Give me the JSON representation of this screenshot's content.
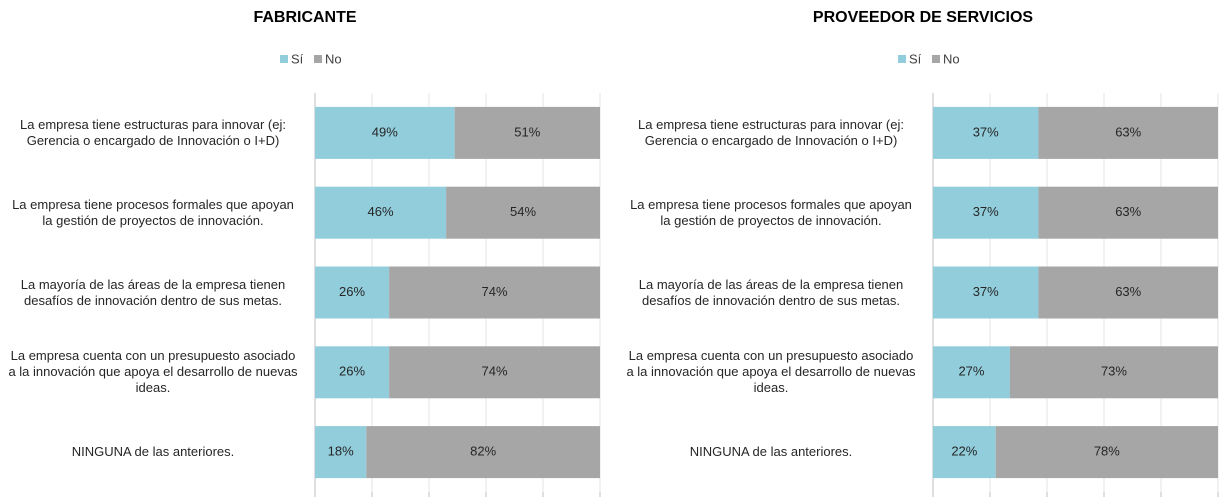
{
  "chart_data": [
    {
      "type": "stacked-barh",
      "title": "FABRICANTE",
      "categories": [
        "La empresa tiene estructuras para innovar (ej: Gerencia o encargado de Innovación o I+D)",
        "La empresa tiene procesos formales que apoyan la gestión de proyectos de innovación.",
        "La mayoría de las áreas de la empresa tienen desafíos de innovación dentro de sus metas.",
        "La empresa cuenta con un presupuesto asociado a la innovación que apoya el desarrollo de nuevas ideas.",
        "NINGUNA de las anteriores."
      ],
      "series": [
        {
          "name": "Sí",
          "color": "#92cddc",
          "values": [
            49,
            46,
            26,
            26,
            18
          ],
          "value_labels": [
            "49%",
            "46%",
            "26%",
            "26%",
            "18%"
          ]
        },
        {
          "name": "No",
          "color": "#a6a6a6",
          "values": [
            51,
            54,
            74,
            74,
            82
          ],
          "value_labels": [
            "51%",
            "54%",
            "74%",
            "74%",
            "82%"
          ]
        }
      ],
      "xlim": [
        0,
        100
      ],
      "xticks": [
        0,
        20,
        40,
        60,
        80,
        100
      ],
      "grid": true,
      "legend": "top"
    },
    {
      "type": "stacked-barh",
      "title": "PROVEEDOR DE SERVICIOS",
      "categories": [
        "La empresa tiene estructuras para innovar (ej: Gerencia o encargado de Innovación o I+D)",
        "La empresa tiene procesos formales que apoyan la gestión de proyectos de innovación.",
        "La mayoría de las áreas de la empresa tienen desafíos de innovación dentro de sus metas.",
        "La empresa cuenta con un presupuesto asociado a la innovación que apoya el desarrollo de nuevas ideas.",
        "NINGUNA de las anteriores."
      ],
      "series": [
        {
          "name": "Sí",
          "color": "#92cddc",
          "values": [
            37,
            37,
            37,
            27,
            22
          ],
          "value_labels": [
            "37%",
            "37%",
            "37%",
            "27%",
            "22%"
          ]
        },
        {
          "name": "No",
          "color": "#a6a6a6",
          "values": [
            63,
            63,
            63,
            73,
            78
          ],
          "value_labels": [
            "63%",
            "63%",
            "63%",
            "73%",
            "78%"
          ]
        }
      ],
      "xlim": [
        0,
        100
      ],
      "xticks": [
        0,
        20,
        40,
        60,
        80,
        100
      ],
      "grid": true,
      "legend": "top"
    }
  ]
}
